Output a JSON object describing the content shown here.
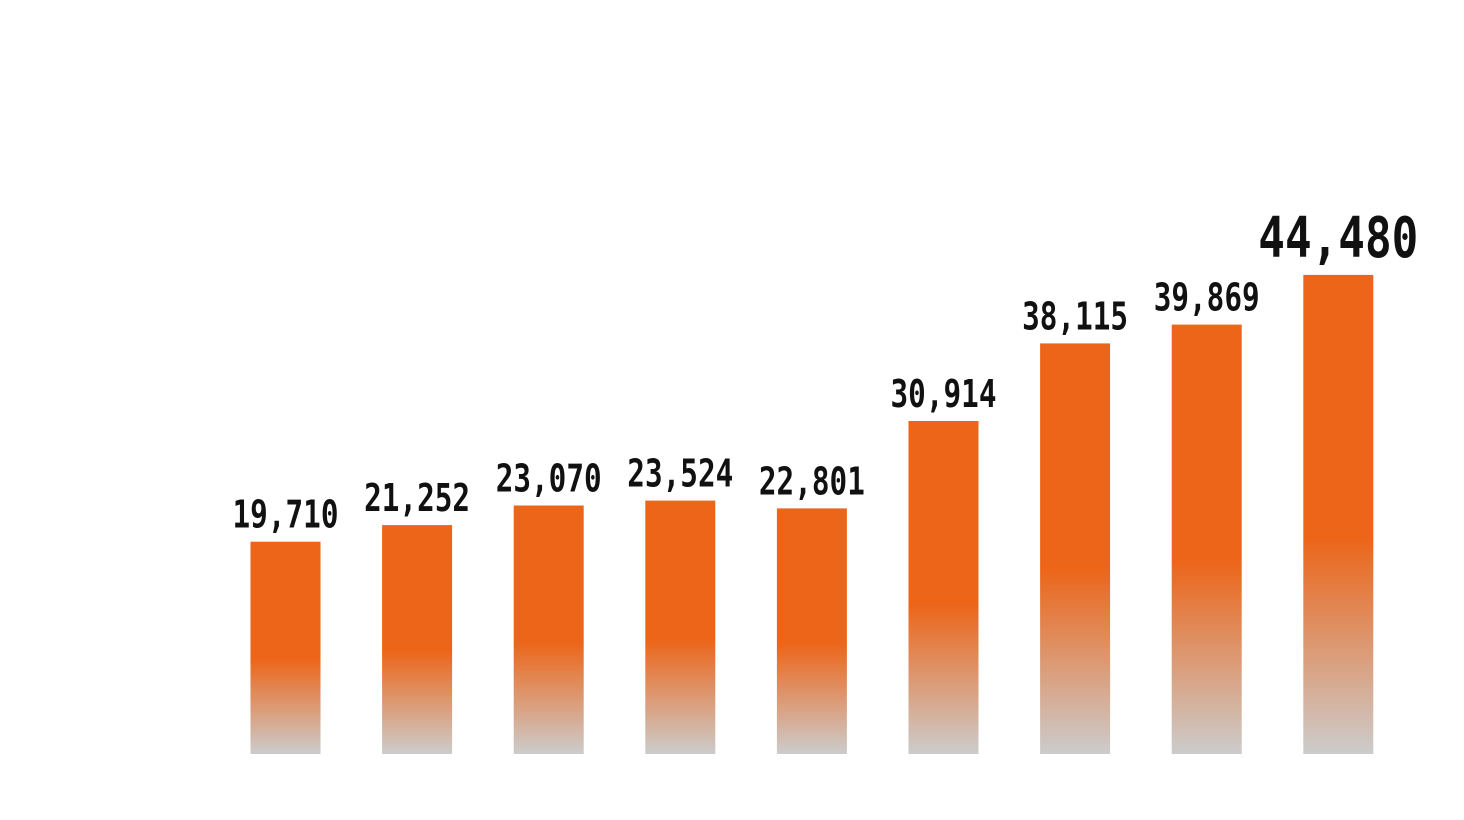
{
  "chart_data": {
    "type": "bar",
    "categories": [
      "",
      "",
      "",
      "",
      "",
      "",
      "",
      "",
      ""
    ],
    "values": [
      19710,
      21252,
      23070,
      23524,
      22801,
      30914,
      38115,
      39869,
      44480
    ],
    "value_labels": [
      "19,710",
      "21,252",
      "23,070",
      "23,524",
      "22,801",
      "30,914",
      "38,115",
      "39,869",
      "44,480"
    ],
    "highlight_index": 8,
    "title": "",
    "xlabel": "",
    "ylabel": "",
    "ylim": [
      0,
      70000
    ],
    "grid": false,
    "legend": "none",
    "colors": {
      "bar_top": "#EC6519",
      "bar_bottom": "#CCCCCC",
      "label": "#111111"
    }
  }
}
